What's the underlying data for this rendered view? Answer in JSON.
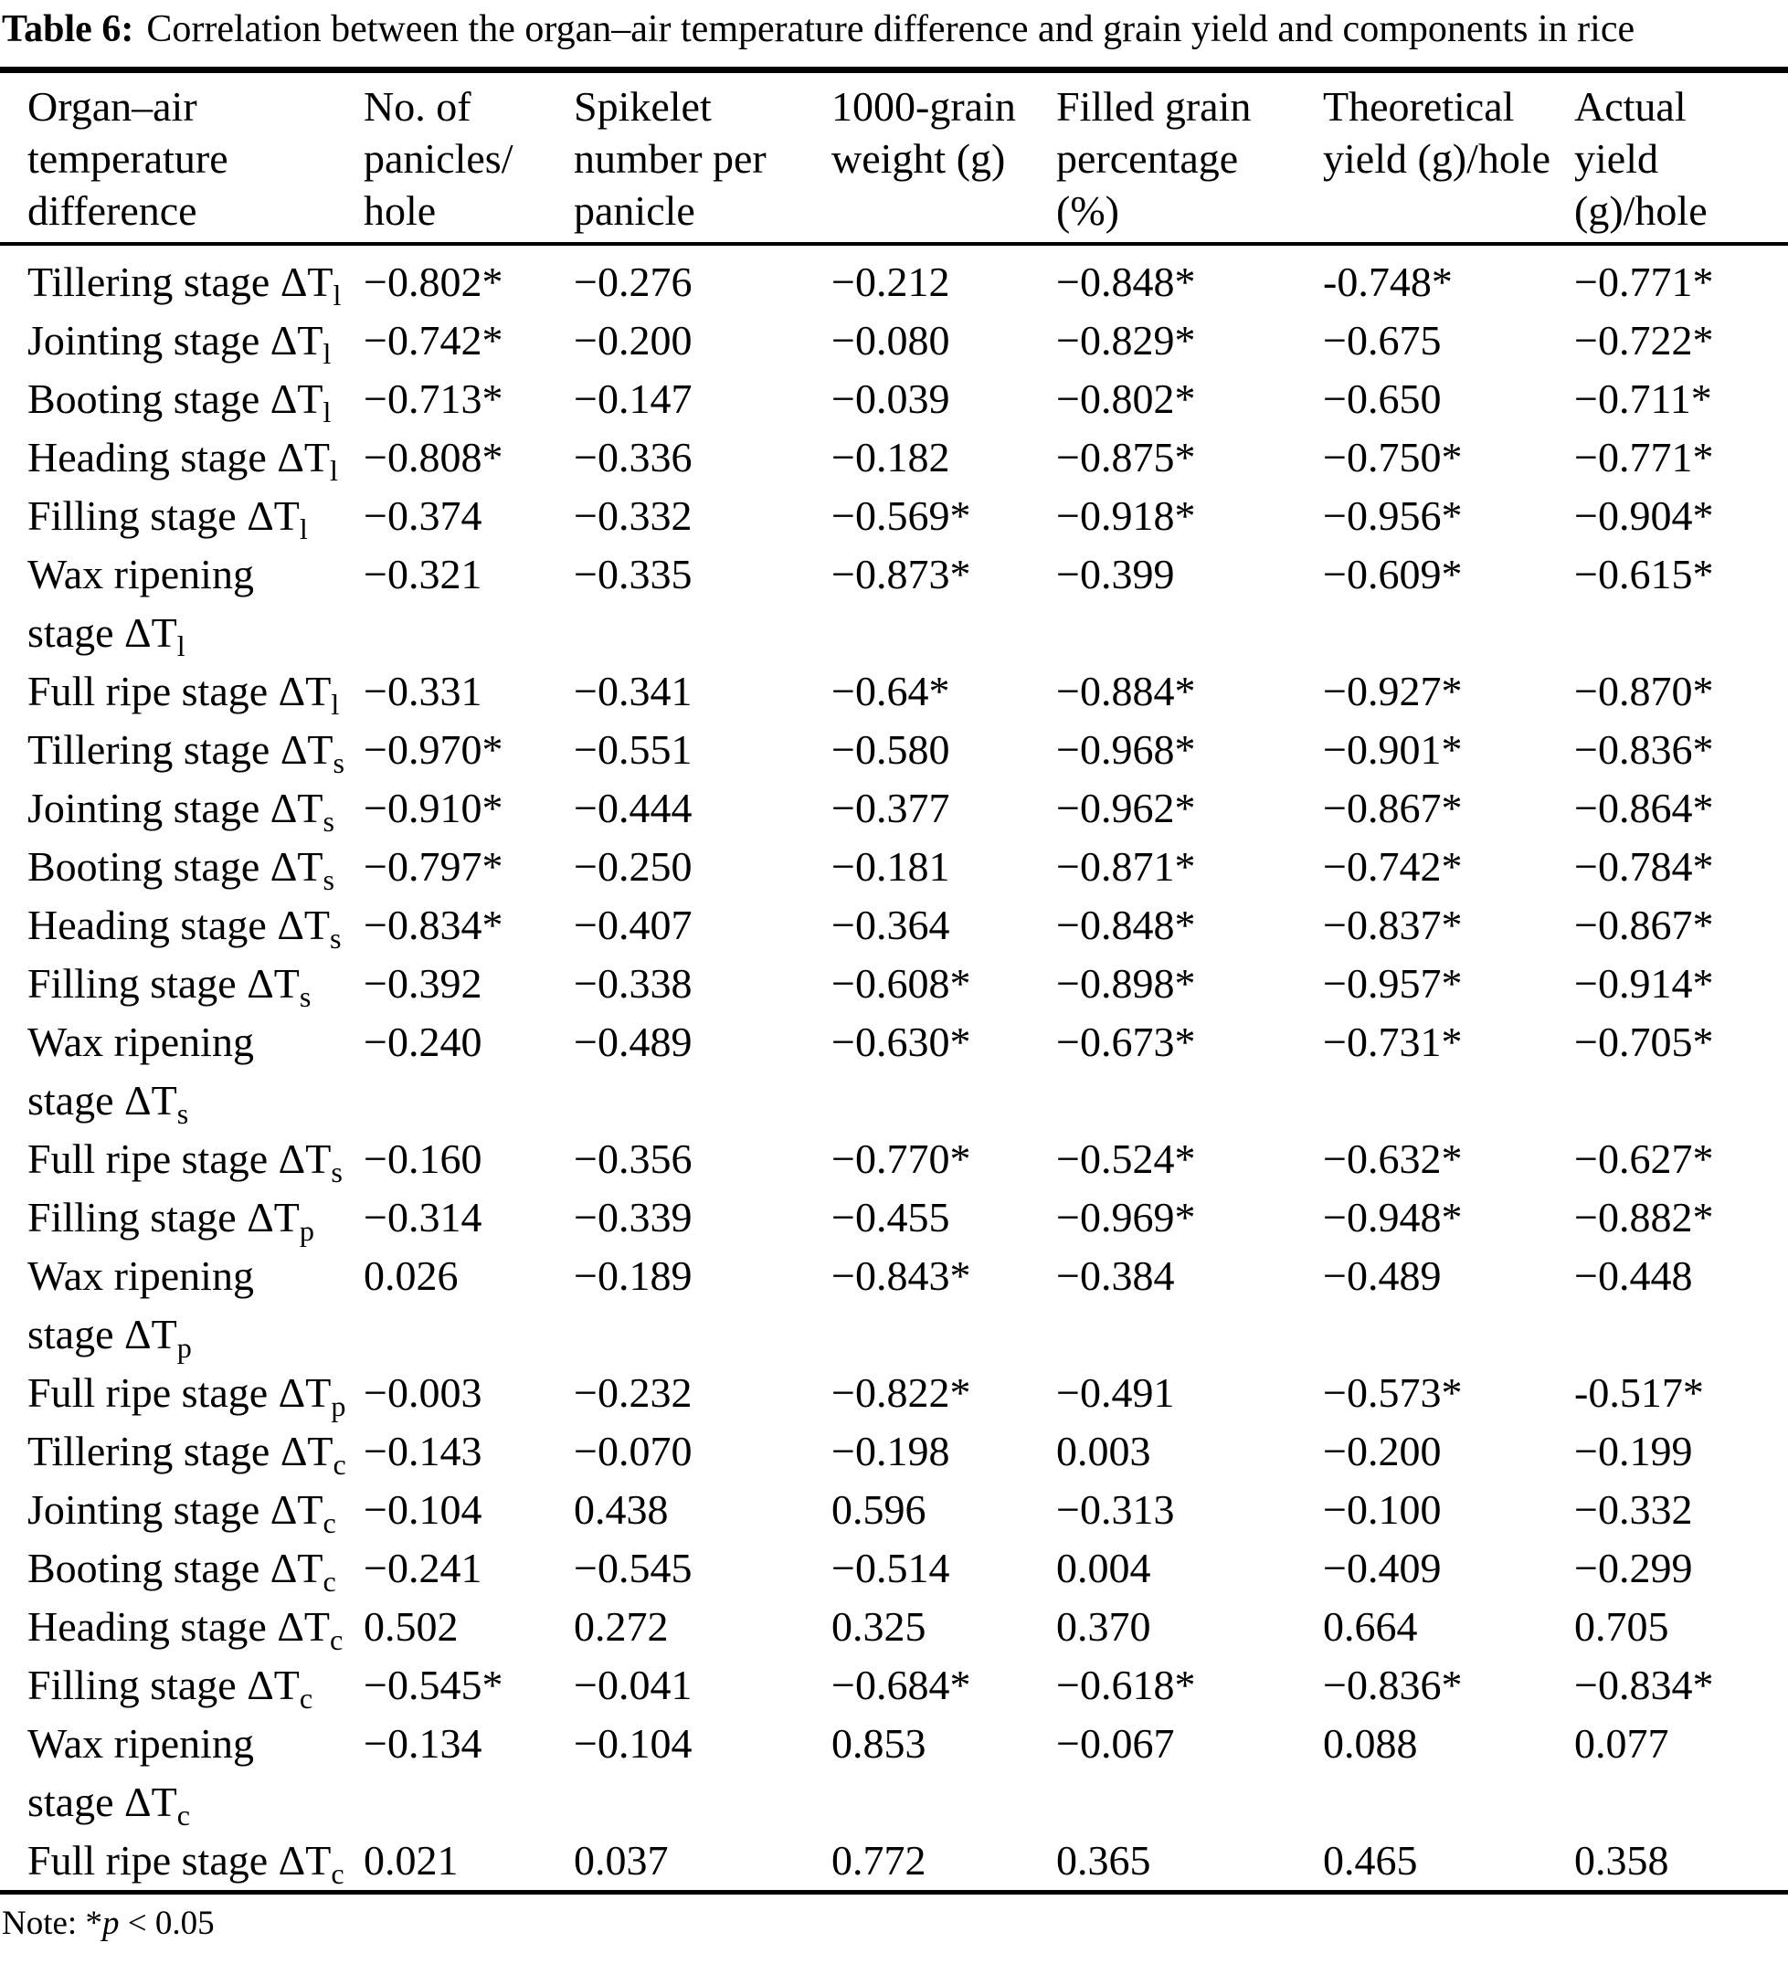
{
  "title": {
    "label": "Table 6:",
    "text": "Correlation between the organ–air temperature difference and grain yield and components in rice"
  },
  "columns": [
    {
      "name": "organ-air-temperature-difference",
      "lines": "Organ–air\ntemperature\ndifference"
    },
    {
      "name": "no-of-panicles-per-hole",
      "lines": "No. of\npanicles/\nhole"
    },
    {
      "name": "spikelet-number-per-panicle",
      "lines": "Spikelet\nnumber per\npanicle"
    },
    {
      "name": "thousand-grain-weight",
      "lines": "1000-grain\nweight (g)"
    },
    {
      "name": "filled-grain-percentage",
      "lines": "Filled grain\npercentage\n(%)"
    },
    {
      "name": "theoretical-yield",
      "lines": "Theoretical\nyield (g)/hole"
    },
    {
      "name": "actual-yield",
      "lines": "Actual\nyield\n(g)/hole"
    }
  ],
  "rows": [
    {
      "label": "Tillering stage ΔT",
      "sub": "l",
      "values": [
        "−0.802*",
        "−0.276",
        "−0.212",
        "−0.848*",
        "-0.748*",
        "−0.771*"
      ]
    },
    {
      "label": "Jointing stage ΔT",
      "sub": "l",
      "values": [
        "−0.742*",
        "−0.200",
        "−0.080",
        "−0.829*",
        "−0.675",
        "−0.722*"
      ]
    },
    {
      "label": "Booting stage ΔT",
      "sub": "l",
      "values": [
        "−0.713*",
        "−0.147",
        "−0.039",
        "−0.802*",
        "−0.650",
        "−0.711*"
      ]
    },
    {
      "label": "Heading stage ΔT",
      "sub": "l",
      "values": [
        "−0.808*",
        "−0.336",
        "−0.182",
        "−0.875*",
        "−0.750*",
        "−0.771*"
      ]
    },
    {
      "label": "Filling stage ΔT",
      "sub": "l",
      "values": [
        "−0.374",
        "−0.332",
        "−0.569*",
        "−0.918*",
        "−0.956*",
        "−0.904*"
      ]
    },
    {
      "label": "Wax ripening\nstage ΔT",
      "sub": "l",
      "values": [
        "−0.321",
        "−0.335",
        "−0.873*",
        "−0.399",
        "−0.609*",
        "−0.615*"
      ]
    },
    {
      "label": "Full ripe stage ΔT",
      "sub": "l",
      "values": [
        "−0.331",
        "−0.341",
        "−0.64*",
        "−0.884*",
        "−0.927*",
        "−0.870*"
      ]
    },
    {
      "label": "Tillering stage ΔT",
      "sub": "s",
      "values": [
        "−0.970*",
        "−0.551",
        "−0.580",
        "−0.968*",
        "−0.901*",
        "−0.836*"
      ]
    },
    {
      "label": "Jointing stage ΔT",
      "sub": "s",
      "values": [
        "−0.910*",
        "−0.444",
        "−0.377",
        "−0.962*",
        "−0.867*",
        "−0.864*"
      ]
    },
    {
      "label": "Booting stage ΔT",
      "sub": "s",
      "values": [
        "−0.797*",
        "−0.250",
        "−0.181",
        "−0.871*",
        "−0.742*",
        "−0.784*"
      ]
    },
    {
      "label": "Heading stage ΔT",
      "sub": "s",
      "values": [
        "−0.834*",
        "−0.407",
        "−0.364",
        "−0.848*",
        "−0.837*",
        "−0.867*"
      ]
    },
    {
      "label": "Filling stage ΔT",
      "sub": "s",
      "values": [
        "−0.392",
        "−0.338",
        "−0.608*",
        "−0.898*",
        "−0.957*",
        "−0.914*"
      ]
    },
    {
      "label": "Wax ripening\nstage ΔT",
      "sub": "s",
      "values": [
        "−0.240",
        "−0.489",
        "−0.630*",
        "−0.673*",
        "−0.731*",
        "−0.705*"
      ]
    },
    {
      "label": "Full ripe stage ΔT",
      "sub": "s",
      "values": [
        "−0.160",
        "−0.356",
        "−0.770*",
        "−0.524*",
        "−0.632*",
        "−0.627*"
      ]
    },
    {
      "label": "Filling stage ΔT",
      "sub": "p",
      "values": [
        "−0.314",
        "−0.339",
        "−0.455",
        "−0.969*",
        "−0.948*",
        "−0.882*"
      ]
    },
    {
      "label": "Wax ripening\nstage ΔT",
      "sub": "p",
      "values": [
        "0.026",
        "−0.189",
        "−0.843*",
        "−0.384",
        "−0.489",
        "−0.448"
      ]
    },
    {
      "label": "Full ripe stage ΔT",
      "sub": "p",
      "values": [
        "−0.003",
        "−0.232",
        "−0.822*",
        "−0.491",
        "−0.573*",
        "-0.517*"
      ]
    },
    {
      "label": "Tillering stage ΔT",
      "sub": "c",
      "values": [
        "−0.143",
        "−0.070",
        "−0.198",
        "0.003",
        "−0.200",
        "−0.199"
      ]
    },
    {
      "label": "Jointing stage ΔT",
      "sub": "c",
      "values": [
        "−0.104",
        "0.438",
        "0.596",
        "−0.313",
        "−0.100",
        "−0.332"
      ]
    },
    {
      "label": "Booting stage ΔT",
      "sub": "c",
      "values": [
        "−0.241",
        "−0.545",
        "−0.514",
        "0.004",
        "−0.409",
        "−0.299"
      ]
    },
    {
      "label": "Heading stage ΔT",
      "sub": "c",
      "values": [
        "0.502",
        "0.272",
        "0.325",
        "0.370",
        "0.664",
        "0.705"
      ]
    },
    {
      "label": "Filling stage ΔT",
      "sub": "c",
      "values": [
        "−0.545*",
        "−0.041",
        "−0.684*",
        "−0.618*",
        "−0.836*",
        "−0.834*"
      ]
    },
    {
      "label": "Wax ripening\nstage ΔT",
      "sub": "c",
      "values": [
        "−0.134",
        "−0.104",
        "0.853",
        "−0.067",
        "0.088",
        "0.077"
      ]
    },
    {
      "label": "Full ripe stage ΔT",
      "sub": "c",
      "values": [
        "0.021",
        "0.037",
        "0.772",
        "0.365",
        "0.465",
        "0.358"
      ]
    }
  ],
  "note": {
    "prefix": "Note: *",
    "var": "p",
    "suffix": " < 0.05"
  },
  "colors": {
    "text": "#000000",
    "background": "#ffffff"
  }
}
